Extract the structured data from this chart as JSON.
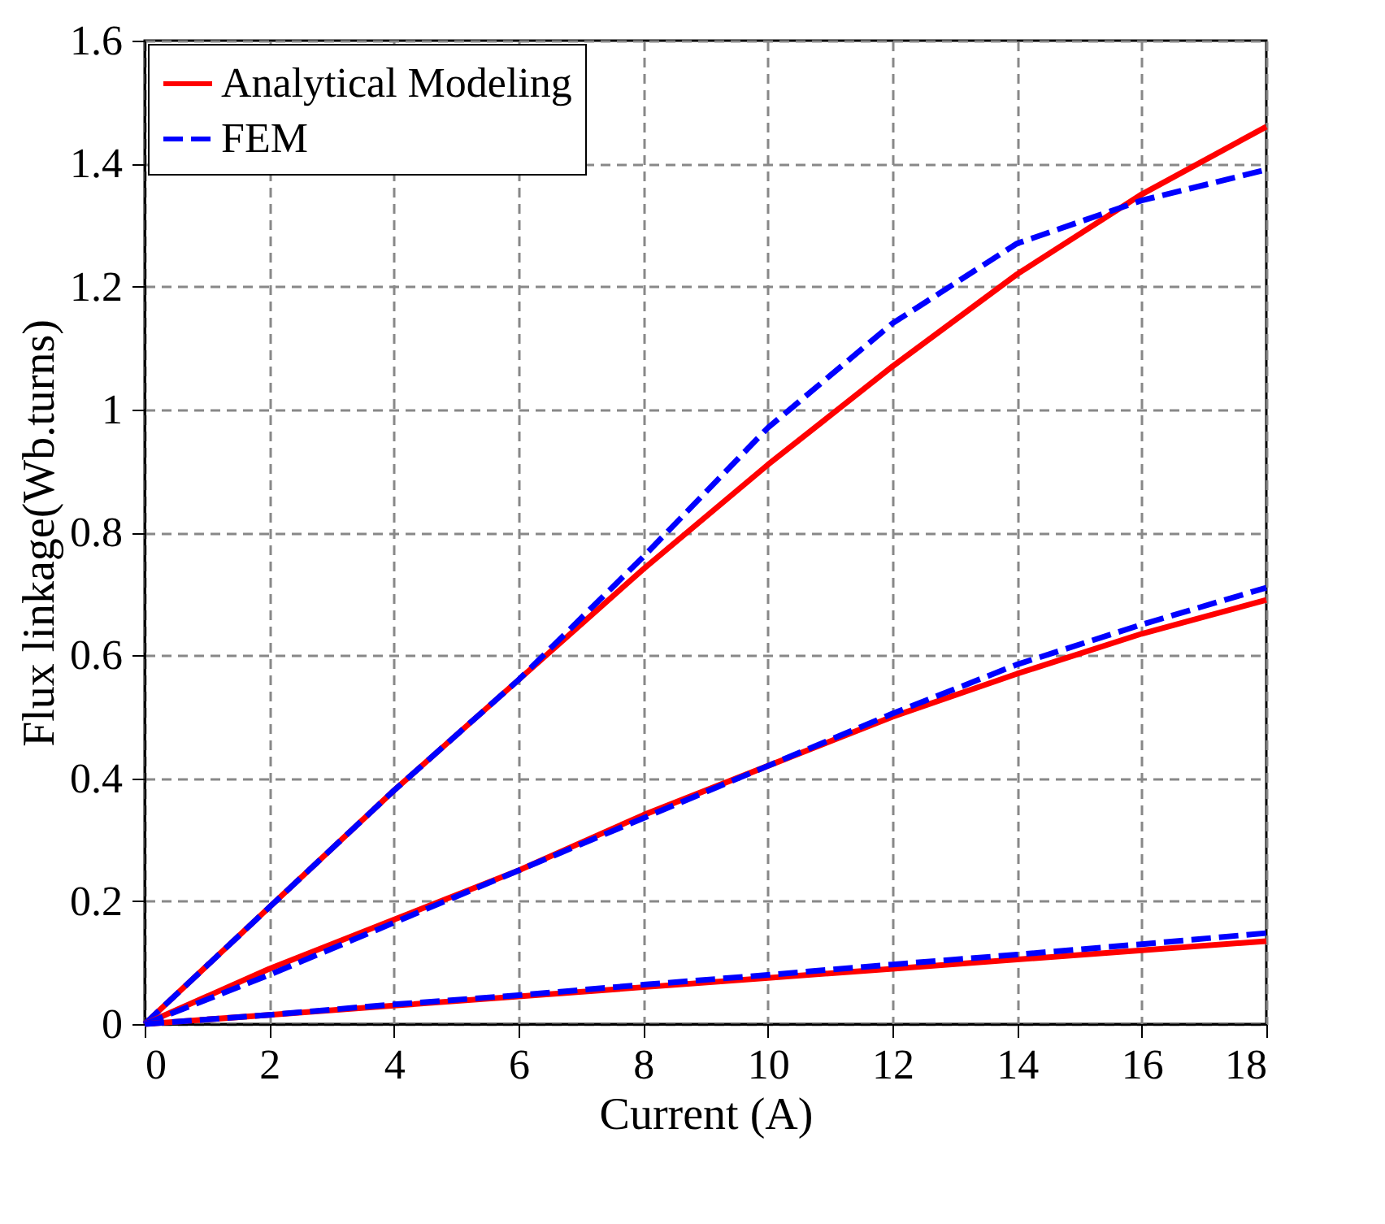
{
  "chart_data": {
    "type": "line",
    "xlabel": "Current (A)",
    "ylabel": "Flux linkage(Wb.turns)",
    "x": [
      0,
      2,
      4,
      6,
      8,
      10,
      12,
      14,
      16,
      18
    ],
    "series": [
      {
        "name": "Analytical Modeling",
        "color": "#ff0000",
        "line_style": "solid",
        "values": [
          0,
          0.19,
          0.38,
          0.56,
          0.74,
          0.91,
          1.07,
          1.22,
          1.35,
          1.46
        ]
      },
      {
        "name": "FEM",
        "color": "#0000ff",
        "line_style": "dashed",
        "values": [
          0,
          0.19,
          0.38,
          0.56,
          0.76,
          0.97,
          1.14,
          1.27,
          1.34,
          1.39
        ]
      },
      {
        "color": "#ff0000",
        "line_style": "solid",
        "values": [
          0,
          0.09,
          0.17,
          0.25,
          0.34,
          0.42,
          0.5,
          0.57,
          0.635,
          0.69
        ]
      },
      {
        "color": "#0000ff",
        "line_style": "dashed",
        "values": [
          0,
          0.08,
          0.165,
          0.25,
          0.335,
          0.42,
          0.505,
          0.585,
          0.65,
          0.71
        ]
      },
      {
        "color": "#ff0000",
        "line_style": "solid",
        "values": [
          0,
          0.015,
          0.03,
          0.045,
          0.06,
          0.075,
          0.09,
          0.105,
          0.12,
          0.135
        ]
      },
      {
        "color": "#0000ff",
        "line_style": "dashed",
        "values": [
          0,
          0.015,
          0.032,
          0.047,
          0.064,
          0.08,
          0.097,
          0.113,
          0.13,
          0.148
        ]
      }
    ],
    "xlim": [
      0,
      18
    ],
    "xticks": [
      0,
      2,
      4,
      6,
      8,
      10,
      12,
      14,
      16,
      18
    ],
    "ylim": [
      0,
      1.6
    ],
    "yticks": [
      0,
      0.2,
      0.4,
      0.6,
      0.8,
      1,
      1.2,
      1.4,
      1.6
    ],
    "grid": true,
    "legend": "top left",
    "marker": "none"
  }
}
